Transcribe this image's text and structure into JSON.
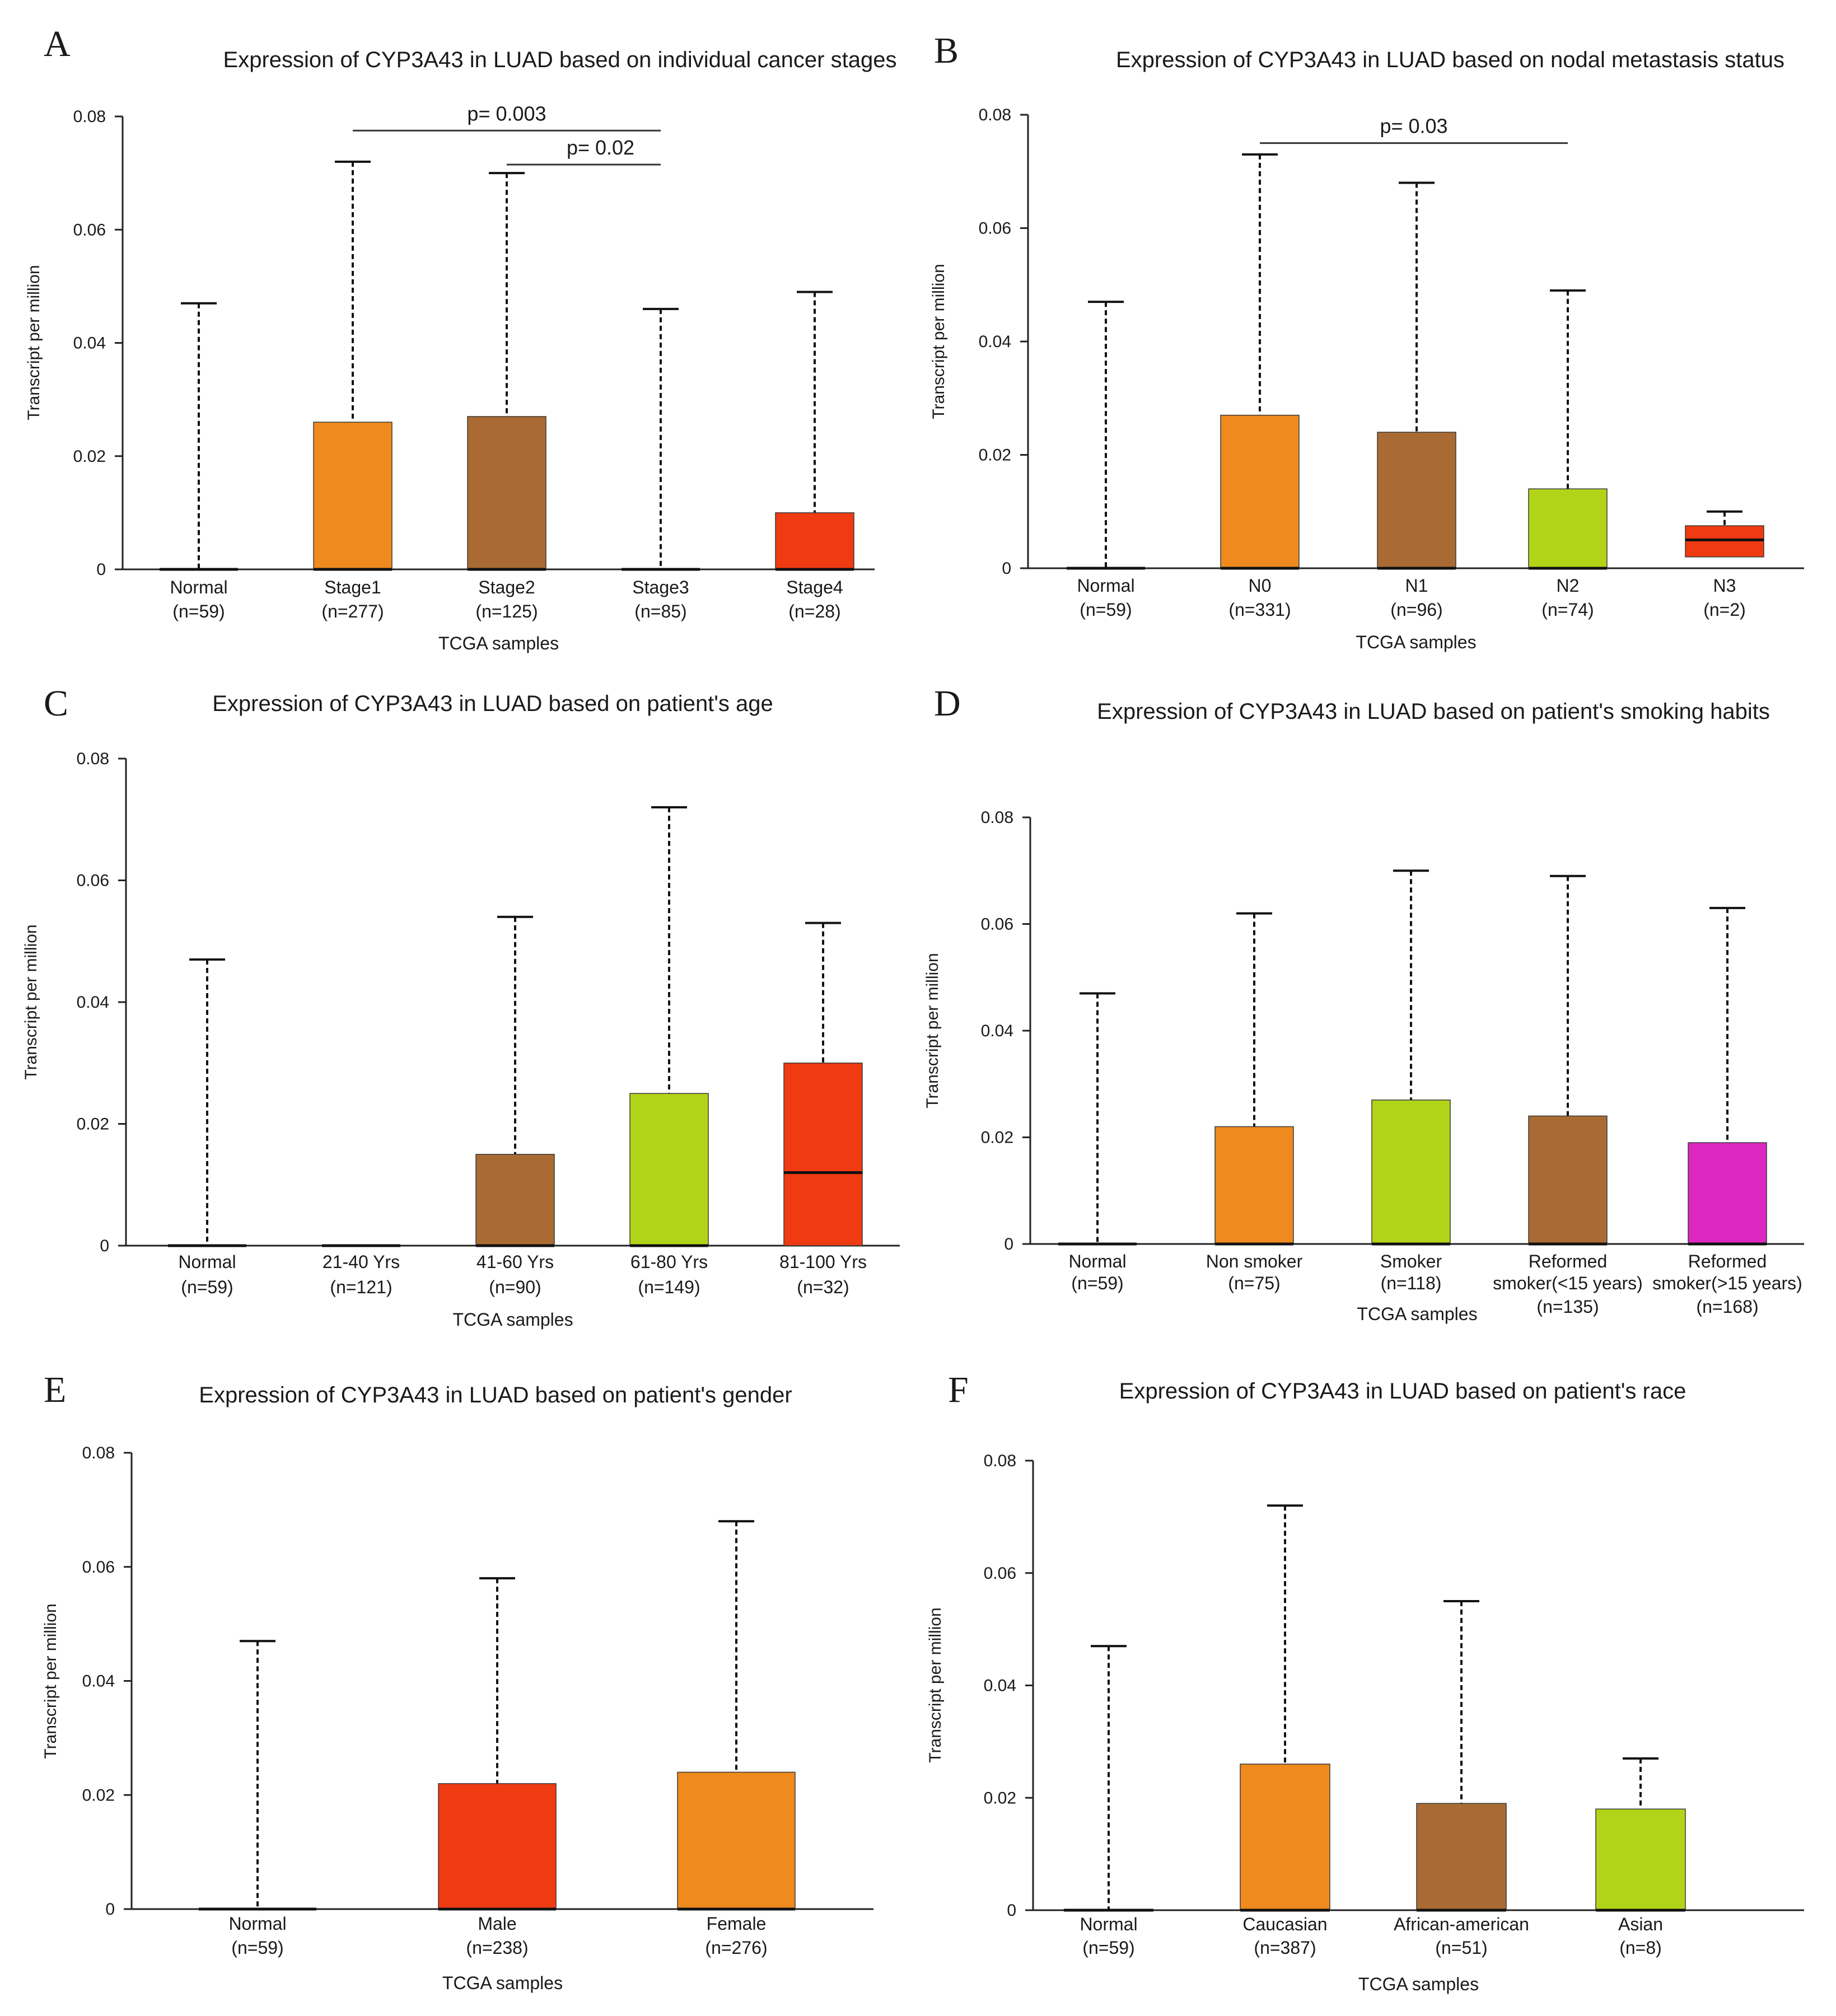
{
  "figure_type": "multi-panel box plots",
  "colors": {
    "normal": "#0000ff",
    "orange": "#ee8a1e",
    "brown": "#a96b33",
    "green": "#b2d418",
    "red": "#ef3a12",
    "magenta": "#dc28be",
    "axis": "#222222",
    "median": "#111111"
  },
  "chart_data": [
    {
      "panel": "A",
      "type": "box",
      "title": "Expression of CYP3A43 in LUAD based on individual cancer stages",
      "xlabel": "TCGA samples",
      "ylabel": "Transcript per million",
      "ylim": [
        0,
        0.08
      ],
      "yticks": [
        "0",
        "0.02",
        "0.04",
        "0.06",
        "0.08"
      ],
      "categories": [
        {
          "name": "Normal",
          "n": "(n=59)",
          "box": [
            0,
            0
          ],
          "median": 0,
          "whisker": 0.047,
          "color": "#0000ff"
        },
        {
          "name": "Stage1",
          "n": "(n=277)",
          "box": [
            0,
            0.026
          ],
          "median": 0,
          "whisker": 0.072,
          "color": "#ee8a1e"
        },
        {
          "name": "Stage2",
          "n": "(n=125)",
          "box": [
            0,
            0.027
          ],
          "median": 0,
          "whisker": 0.07,
          "color": "#a96b33"
        },
        {
          "name": "Stage3",
          "n": "(n=85)",
          "box": [
            0,
            0
          ],
          "median": 0,
          "whisker": 0.046,
          "color": "#b2d418"
        },
        {
          "name": "Stage4",
          "n": "(n=28)",
          "box": [
            0,
            0.01
          ],
          "median": 0,
          "whisker": 0.049,
          "color": "#ef3a12"
        }
      ],
      "significance": [
        {
          "label": "p= 0.003",
          "from": 1,
          "to": 3,
          "y": 0.0775
        },
        {
          "label": "p= 0.02",
          "from": 2,
          "to": 3,
          "y": 0.0715
        }
      ]
    },
    {
      "panel": "B",
      "type": "box",
      "title": "Expression of CYP3A43 in LUAD based on nodal metastasis status",
      "xlabel": "TCGA samples",
      "ylabel": "Transcript per million",
      "ylim": [
        0,
        0.08
      ],
      "yticks": [
        "0",
        "0.02",
        "0.04",
        "0.06",
        "0.08"
      ],
      "categories": [
        {
          "name": "Normal",
          "n": "(n=59)",
          "box": [
            0,
            0
          ],
          "median": 0,
          "whisker": 0.047,
          "color": "#0000ff"
        },
        {
          "name": "N0",
          "n": "(n=331)",
          "box": [
            0,
            0.027
          ],
          "median": 0,
          "whisker": 0.073,
          "color": "#ee8a1e"
        },
        {
          "name": "N1",
          "n": "(n=96)",
          "box": [
            0,
            0.024
          ],
          "median": 0,
          "whisker": 0.068,
          "color": "#a96b33"
        },
        {
          "name": "N2",
          "n": "(n=74)",
          "box": [
            0,
            0.014
          ],
          "median": 0,
          "whisker": 0.049,
          "color": "#b2d418"
        },
        {
          "name": "N3",
          "n": "(n=2)",
          "box": [
            0.002,
            0.0075
          ],
          "median": 0.005,
          "whisker": 0.01,
          "color": "#ef3a12"
        }
      ],
      "significance": [
        {
          "label": "p= 0.03",
          "from": 1,
          "to": 3,
          "y": 0.075
        }
      ]
    },
    {
      "panel": "C",
      "type": "box",
      "title": "Expression of CYP3A43 in LUAD based on patient's age",
      "xlabel": "TCGA samples",
      "ylabel": "Transcript per million",
      "ylim": [
        0,
        0.08
      ],
      "yticks": [
        "0",
        "0.02",
        "0.04",
        "0.06",
        "0.08"
      ],
      "categories": [
        {
          "name": "Normal",
          "n": "(n=59)",
          "box": [
            0,
            0
          ],
          "median": 0,
          "whisker": 0.047,
          "color": "#0000ff"
        },
        {
          "name": "21-40 Yrs",
          "n": "(n=121)",
          "box": [
            0,
            0
          ],
          "median": 0,
          "whisker": 0,
          "color": "#ee8a1e"
        },
        {
          "name": "41-60 Yrs",
          "n": "(n=90)",
          "box": [
            0,
            0.015
          ],
          "median": 0,
          "whisker": 0.054,
          "color": "#a96b33"
        },
        {
          "name": "61-80 Yrs",
          "n": "(n=149)",
          "box": [
            0,
            0.025
          ],
          "median": 0,
          "whisker": 0.072,
          "color": "#b2d418"
        },
        {
          "name": "81-100 Yrs",
          "n": "(n=32)",
          "box": [
            0,
            0.03
          ],
          "median": 0.012,
          "whisker": 0.053,
          "color": "#ef3a12"
        }
      ],
      "significance": []
    },
    {
      "panel": "D",
      "type": "box",
      "title": "Expression of CYP3A43 in LUAD based on patient's smoking habits",
      "xlabel": "TCGA samples",
      "ylabel": "Transcript per million",
      "ylim": [
        0,
        0.08
      ],
      "yticks": [
        "0",
        "0.02",
        "0.04",
        "0.06",
        "0.08"
      ],
      "categories": [
        {
          "name": "Normal",
          "n": "(n=59)",
          "box": [
            0,
            0
          ],
          "median": 0,
          "whisker": 0.047,
          "color": "#0000ff"
        },
        {
          "name": "Non smoker",
          "n": "(n=75)",
          "box": [
            0,
            0.022
          ],
          "median": 0,
          "whisker": 0.062,
          "color": "#ee8a1e"
        },
        {
          "name": "Smoker",
          "n": "(n=118)",
          "box": [
            0,
            0.027
          ],
          "median": 0,
          "whisker": 0.07,
          "color": "#b2d418"
        },
        {
          "name": "Reformed",
          "name2": "smoker(<15 years)",
          "n": "(n=135)",
          "box": [
            0,
            0.024
          ],
          "median": 0,
          "whisker": 0.069,
          "color": "#a96b33"
        },
        {
          "name": "Reformed",
          "name2": "smoker(>15 years)",
          "n": "(n=168)",
          "box": [
            0,
            0.019
          ],
          "median": 0,
          "whisker": 0.063,
          "color": "#dc28be"
        }
      ],
      "significance": []
    },
    {
      "panel": "E",
      "type": "box",
      "title": "Expression of CYP3A43 in LUAD based on patient's gender",
      "xlabel": "TCGA samples",
      "ylabel": "Transcript per million",
      "ylim": [
        0,
        0.08
      ],
      "yticks": [
        "0",
        "0.02",
        "0.04",
        "0.06",
        "0.08"
      ],
      "categories": [
        {
          "name": "Normal",
          "n": "(n=59)",
          "box": [
            0,
            0
          ],
          "median": 0,
          "whisker": 0.047,
          "color": "#0000ff"
        },
        {
          "name": "Male",
          "n": "(n=238)",
          "box": [
            0,
            0.022
          ],
          "median": 0,
          "whisker": 0.058,
          "color": "#ef3a12"
        },
        {
          "name": "Female",
          "n": "(n=276)",
          "box": [
            0,
            0.024
          ],
          "median": 0,
          "whisker": 0.068,
          "color": "#ee8a1e"
        }
      ],
      "significance": []
    },
    {
      "panel": "F",
      "type": "box",
      "title": "Expression of CYP3A43 in LUAD based on patient's race",
      "xlabel": "TCGA samples",
      "ylabel": "Transcript per million",
      "ylim": [
        0,
        0.08
      ],
      "yticks": [
        "0",
        "0.02",
        "0.04",
        "0.06",
        "0.08"
      ],
      "categories": [
        {
          "name": "Normal",
          "n": "(n=59)",
          "box": [
            0,
            0
          ],
          "median": 0,
          "whisker": 0.047,
          "color": "#0000ff"
        },
        {
          "name": "Caucasian",
          "n": "(n=387)",
          "box": [
            0,
            0.026
          ],
          "median": 0,
          "whisker": 0.072,
          "color": "#ee8a1e"
        },
        {
          "name": "African-american",
          "n": "(n=51)",
          "box": [
            0,
            0.019
          ],
          "median": 0,
          "whisker": 0.055,
          "color": "#a96b33"
        },
        {
          "name": "Asian",
          "n": "(n=8)",
          "box": [
            0,
            0.018
          ],
          "median": 0,
          "whisker": 0.027,
          "color": "#b2d418"
        }
      ],
      "significance": []
    }
  ]
}
